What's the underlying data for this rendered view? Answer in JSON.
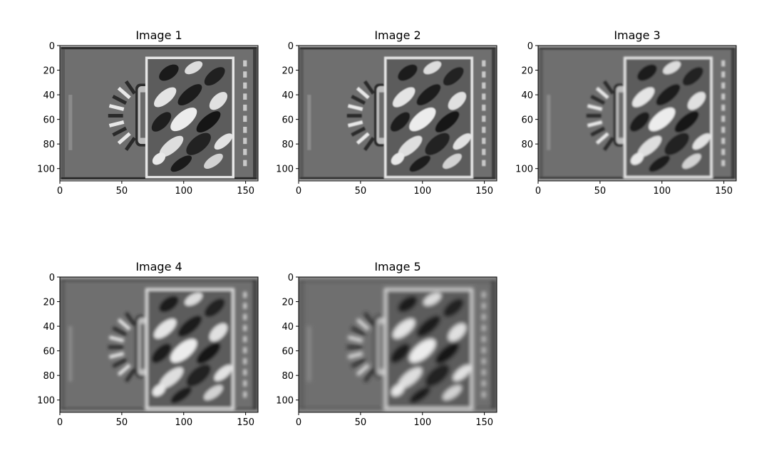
{
  "figure": {
    "panels": [
      {
        "title": "Image 1",
        "blur": 0.0,
        "xticks": [
          "0",
          "50",
          "100",
          "150"
        ],
        "yticks": [
          "0",
          "20",
          "40",
          "60",
          "80",
          "100"
        ]
      },
      {
        "title": "Image 2",
        "blur": 0.45,
        "xticks": [
          "0",
          "50",
          "100",
          "150"
        ],
        "yticks": [
          "0",
          "20",
          "40",
          "60",
          "80",
          "100"
        ]
      },
      {
        "title": "Image 3",
        "blur": 0.9,
        "xticks": [
          "0",
          "50",
          "100",
          "150"
        ],
        "yticks": [
          "0",
          "20",
          "40",
          "60",
          "80",
          "100"
        ]
      },
      {
        "title": "Image 4",
        "blur": 1.4,
        "xticks": [
          "0",
          "50",
          "100",
          "150"
        ],
        "yticks": [
          "0",
          "20",
          "40",
          "60",
          "80",
          "100"
        ]
      },
      {
        "title": "Image 5",
        "blur": 1.9,
        "xticks": [
          "0",
          "50",
          "100",
          "150"
        ],
        "yticks": [
          "0",
          "20",
          "40",
          "60",
          "80",
          "100"
        ]
      }
    ],
    "image_extent": {
      "x": [
        0,
        160
      ],
      "y": [
        0,
        110
      ]
    },
    "colormap": "gray",
    "background_gray": "#6f6f6f"
  }
}
